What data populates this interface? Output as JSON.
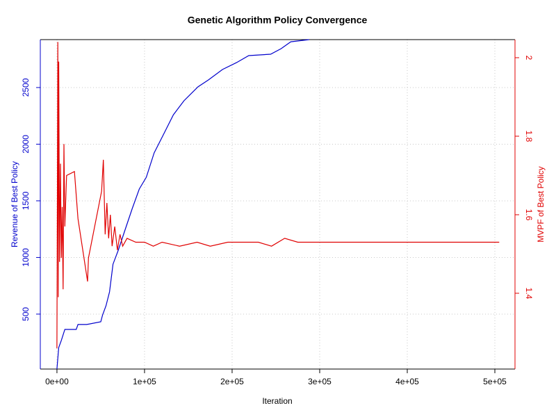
{
  "chart_data": {
    "type": "line",
    "title": "Genetic Algorithm Policy Convergence",
    "x_label": "Iteration",
    "y_label": "Revenue of Best Policy",
    "y2_label": "MVPF of Best Policy",
    "xlim": [
      -19000,
      523000
    ],
    "xticks": [
      {
        "value": 0,
        "label": "0e+00"
      },
      {
        "value": 100000,
        "label": "1e+05"
      },
      {
        "value": 200000,
        "label": "2e+05"
      },
      {
        "value": 300000,
        "label": "3e+05"
      },
      {
        "value": 400000,
        "label": "4e+05"
      },
      {
        "value": 500000,
        "label": "5e+05"
      }
    ],
    "ylim": [
      15,
      2923
    ],
    "yticks": [
      500,
      1000,
      1500,
      2000,
      2500
    ],
    "y2lim": [
      1.207,
      2.046
    ],
    "y2ticks": [
      1.4,
      1.6,
      1.8,
      2
    ],
    "grid": true,
    "series": [
      {
        "name": "Revenue of Best Policy",
        "color": "#0000cc",
        "axis": "y",
        "x": [
          0,
          2000,
          5000,
          9000,
          22000,
          24000,
          34000,
          50000,
          52000,
          56000,
          60000,
          64000,
          70000,
          78000,
          86000,
          94000,
          102000,
          111000,
          121000,
          133000,
          145000,
          161000,
          173000,
          189000,
          205000,
          219000,
          244000,
          256000,
          267000,
          288000
        ],
        "values": [
          15,
          205,
          267,
          365,
          365,
          408,
          408,
          432,
          490,
          573,
          696,
          941,
          1064,
          1248,
          1432,
          1604,
          1708,
          1923,
          2076,
          2260,
          2383,
          2506,
          2567,
          2659,
          2720,
          2782,
          2794,
          2843,
          2904,
          2923
        ]
      },
      {
        "name": "MVPF of Best Policy",
        "color": "#e00000",
        "axis": "y2",
        "x": [
          0,
          1000,
          1500,
          2000,
          3000,
          4000,
          5000,
          6000,
          7000,
          8000,
          9000,
          11000,
          20000,
          24000,
          35000,
          36000,
          51000,
          53000,
          55000,
          57000,
          59000,
          61000,
          63000,
          66000,
          69000,
          72000,
          75000,
          80000,
          90000,
          100000,
          110000,
          120000,
          140000,
          160000,
          175000,
          195000,
          230000,
          245000,
          260000,
          275000,
          290000,
          505000
        ],
        "values": [
          1.26,
          2.04,
          1.39,
          1.99,
          1.48,
          1.73,
          1.49,
          1.62,
          1.41,
          1.78,
          1.57,
          1.7,
          1.71,
          1.59,
          1.43,
          1.49,
          1.66,
          1.74,
          1.55,
          1.63,
          1.54,
          1.6,
          1.52,
          1.57,
          1.51,
          1.55,
          1.52,
          1.54,
          1.53,
          1.53,
          1.52,
          1.53,
          1.52,
          1.53,
          1.52,
          1.53,
          1.53,
          1.52,
          1.54,
          1.53,
          1.53,
          1.53
        ]
      }
    ]
  }
}
